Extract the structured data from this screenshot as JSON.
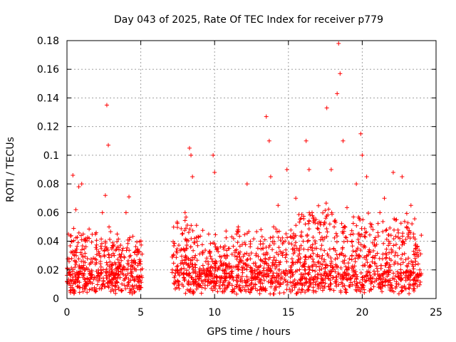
{
  "chart_data": {
    "type": "scatter",
    "title": "Day 043 of 2025, Rate Of TEC Index for receiver p779",
    "xlabel": "GPS time / hours",
    "ylabel": "ROTI / TECUs",
    "xlim": [
      0,
      25
    ],
    "ylim": [
      0,
      0.18
    ],
    "x_ticks": [
      0,
      5,
      10,
      15,
      20,
      25
    ],
    "y_ticks": [
      0,
      0.02,
      0.04,
      0.06,
      0.08,
      0.1,
      0.12,
      0.14,
      0.16,
      0.18
    ],
    "x_tick_labels": [
      "0",
      "5",
      "10",
      "15",
      "20",
      "25"
    ],
    "y_tick_labels": [
      "0",
      "0.02",
      "0.04",
      "0.06",
      "0.08",
      "0.1",
      "0.12",
      "0.14",
      "0.16",
      "0.18"
    ],
    "grid": true,
    "marker": "+",
    "color": "#ff0000",
    "data_gap_hours": [
      5.1,
      7.1
    ],
    "series": [
      {
        "x": [
          0.0,
          0.15,
          0.3,
          0.4,
          0.5,
          0.6,
          0.8,
          1.0,
          1.1,
          1.25,
          1.5,
          1.7,
          2.0,
          2.2,
          2.4,
          2.6,
          2.7,
          2.8,
          2.85,
          3.0,
          3.2,
          3.4,
          3.6,
          3.8,
          4.0,
          4.2,
          4.3,
          4.45,
          4.6,
          4.8,
          5.0,
          7.2,
          7.5,
          7.8,
          8.0,
          8.3,
          8.4,
          8.5,
          8.7,
          9.0,
          9.3,
          9.6,
          9.9,
          10.0,
          10.2,
          10.5,
          10.8,
          11.0,
          11.3,
          11.6,
          11.9,
          12.2,
          12.5,
          12.8,
          13.1,
          13.5,
          13.7,
          13.8,
          14.0,
          14.3,
          14.6,
          14.9,
          15.2,
          15.5,
          15.8,
          16.0,
          16.2,
          16.4,
          16.6,
          16.8,
          17.0,
          17.3,
          17.6,
          17.9,
          18.1,
          18.3,
          18.4,
          18.5,
          18.7,
          19.0,
          19.3,
          19.6,
          19.9,
          20.0,
          20.3,
          20.6,
          20.9,
          21.2,
          21.5,
          21.8,
          22.1,
          22.4,
          22.7,
          23.0,
          23.3,
          23.6,
          23.9
        ],
        "y": [
          0.012,
          0.018,
          0.04,
          0.086,
          0.03,
          0.062,
          0.078,
          0.08,
          0.045,
          0.02,
          0.042,
          0.015,
          0.025,
          0.03,
          0.06,
          0.072,
          0.135,
          0.107,
          0.05,
          0.018,
          0.03,
          0.045,
          0.022,
          0.035,
          0.06,
          0.071,
          0.03,
          0.015,
          0.025,
          0.012,
          0.02,
          0.03,
          0.02,
          0.045,
          0.06,
          0.105,
          0.1,
          0.085,
          0.03,
          0.02,
          0.018,
          0.045,
          0.1,
          0.088,
          0.02,
          0.015,
          0.03,
          0.035,
          0.022,
          0.05,
          0.018,
          0.08,
          0.015,
          0.03,
          0.04,
          0.127,
          0.11,
          0.085,
          0.05,
          0.065,
          0.03,
          0.09,
          0.02,
          0.07,
          0.025,
          0.04,
          0.11,
          0.09,
          0.06,
          0.035,
          0.025,
          0.03,
          0.133,
          0.09,
          0.05,
          0.143,
          0.178,
          0.157,
          0.11,
          0.04,
          0.03,
          0.08,
          0.115,
          0.1,
          0.085,
          0.05,
          0.03,
          0.06,
          0.07,
          0.04,
          0.088,
          0.03,
          0.085,
          0.05,
          0.065,
          0.035,
          0.02
        ]
      }
    ]
  }
}
